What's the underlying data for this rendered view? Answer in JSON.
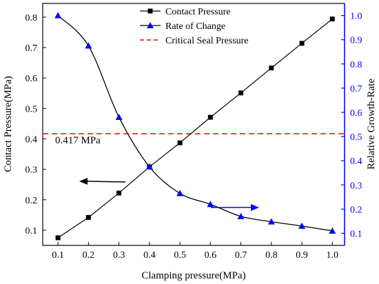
{
  "chart_data": {
    "type": "line",
    "xlabel": "Clamping pressure(MPa)",
    "ylabel_left": "Contact Pressure(MPa)",
    "ylabel_right": "Relative Growth-Rate",
    "x_ticks": [
      "0.1",
      "0.2",
      "0.3",
      "0.4",
      "0.5",
      "0.6",
      "0.7",
      "0.8",
      "0.9",
      "1.0"
    ],
    "yleft_ticks": [
      "0.1",
      "0.2",
      "0.3",
      "0.4",
      "0.5",
      "0.6",
      "0.7",
      "0.8"
    ],
    "yright_ticks": [
      "0.1",
      "0.2",
      "0.3",
      "0.4",
      "0.5",
      "0.6",
      "0.7",
      "0.8",
      "0.9",
      "1.0"
    ],
    "xlim": [
      0.05,
      1.04
    ],
    "ylim_left": [
      0.05,
      0.845
    ],
    "ylim_right": [
      0.05,
      1.05
    ],
    "grid": false,
    "legend_position": "top-center",
    "series": [
      {
        "name": "Contact  Pressure",
        "axis": "left",
        "marker": "square",
        "color": "#000000",
        "x": [
          0.1,
          0.2,
          0.3,
          0.4,
          0.5,
          0.6,
          0.7,
          0.8,
          0.9,
          1.0
        ],
        "values": [
          0.075,
          0.142,
          0.222,
          0.308,
          0.387,
          0.471,
          0.551,
          0.633,
          0.714,
          0.794
        ]
      },
      {
        "name": "Rate of Change",
        "axis": "right",
        "marker": "triangle",
        "color": "#000000",
        "marker_color": "#0000ff",
        "x": [
          0.1,
          0.2,
          0.3,
          0.4,
          0.5,
          0.6,
          0.7,
          0.8,
          0.9,
          1.0
        ],
        "values": [
          1.0,
          0.875,
          0.58,
          0.375,
          0.265,
          0.22,
          0.17,
          0.148,
          0.13,
          0.11
        ]
      },
      {
        "name": "Critical  Seal  Pressure",
        "axis": "left",
        "style": "dashed",
        "color": "#ff0000",
        "value": 0.417
      }
    ],
    "annotations": {
      "critical_label": "0.417 MPa"
    }
  },
  "colors": {
    "right_axis": "#0000ff",
    "critical": "#ff0000",
    "black": "#000000"
  }
}
